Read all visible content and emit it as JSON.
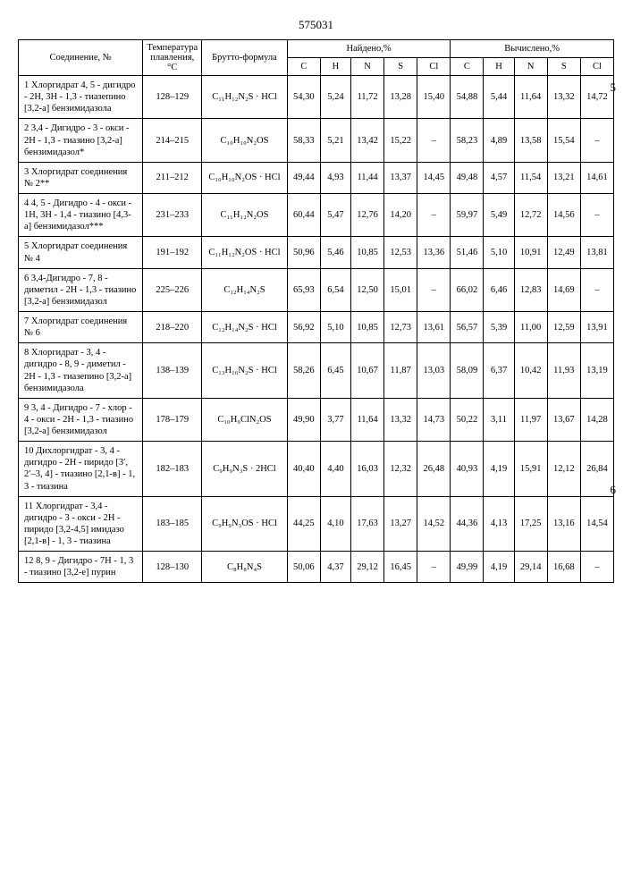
{
  "page_number": "575031",
  "side_labels": {
    "five": "5",
    "six": "6"
  },
  "headers": {
    "compound": "Соединение, №",
    "temp": "Температура плавления, °С",
    "formula": "Брутто-формула",
    "found": "Найдено,%",
    "calc": "Вычислено,%",
    "C": "C",
    "H": "H",
    "N": "N",
    "S": "S",
    "Cl": "Cl"
  },
  "rows": [
    {
      "n": "1",
      "name": "Хлоргидрат 4, 5 - дигидро - 2Н, 3Н - 1,3 - тиазепино [3,2-а] бензимидазола",
      "temp": "128–129",
      "formula": "C₁₁H₁₂N₂S · HCl",
      "f": {
        "C": "54,30",
        "H": "5,24",
        "N": "11,72",
        "S": "13,28",
        "Cl": "15,40"
      },
      "c": {
        "C": "54,88",
        "H": "5,44",
        "N": "11,64",
        "S": "13,32",
        "Cl": "14,72"
      }
    },
    {
      "n": "2",
      "name": "3,4 - Дигидро - 3 - окси - 2Н - 1,3 - тиазино [3,2-а] бензимидазол*",
      "temp": "214–215",
      "formula": "C₁₀H₁₀N₂OS",
      "f": {
        "C": "58,33",
        "H": "5,21",
        "N": "13,42",
        "S": "15,22",
        "Cl": "–"
      },
      "c": {
        "C": "58,23",
        "H": "4,89",
        "N": "13,58",
        "S": "15,54",
        "Cl": "–"
      }
    },
    {
      "n": "3",
      "name": "Хлоргидрат соединения № 2**",
      "temp": "211–212",
      "formula": "C₁₀H₁₀N₂OS · HCl",
      "f": {
        "C": "49,44",
        "H": "4,93",
        "N": "11,44",
        "S": "13,37",
        "Cl": "14,45"
      },
      "c": {
        "C": "49,48",
        "H": "4,57",
        "N": "11,54",
        "S": "13,21",
        "Cl": "14,61"
      }
    },
    {
      "n": "4",
      "name": "4, 5 - Дигидро - 4 - окси - 1Н, 3Н - 1,4 - тиазино [4,3-а] бензимидазол***",
      "temp": "231–233",
      "formula": "C₁₁H₁₂N₂OS",
      "f": {
        "C": "60,44",
        "H": "5,47",
        "N": "12,76",
        "S": "14,20",
        "Cl": "–"
      },
      "c": {
        "C": "59,97",
        "H": "5,49",
        "N": "12,72",
        "S": "14,56",
        "Cl": "–"
      }
    },
    {
      "n": "5",
      "name": "Хлоргидрат соединения № 4",
      "temp": "191–192",
      "formula": "C₁₁H₁₂N₂OS · HCl",
      "f": {
        "C": "50,96",
        "H": "5,46",
        "N": "10,85",
        "S": "12,53",
        "Cl": "13,36"
      },
      "c": {
        "C": "51,46",
        "H": "5,10",
        "N": "10,91",
        "S": "12,49",
        "Cl": "13,81"
      }
    },
    {
      "n": "6",
      "name": "3,4-Дигидро - 7, 8 - диметил - 2Н - 1,3 - тиазино [3,2-а] бензимидазол",
      "temp": "225–226",
      "formula": "C₁₂H₁₄N₂S",
      "f": {
        "C": "65,93",
        "H": "6,54",
        "N": "12,50",
        "S": "15,01",
        "Cl": "–"
      },
      "c": {
        "C": "66,02",
        "H": "6,46",
        "N": "12,83",
        "S": "14,69",
        "Cl": "–"
      }
    },
    {
      "n": "7",
      "name": "Хлоргидрат соединения № 6",
      "temp": "218–220",
      "formula": "C₁₂H₁₄N₂S · HCl",
      "f": {
        "C": "56,92",
        "H": "5,10",
        "N": "10,85",
        "S": "12,73",
        "Cl": "13,61"
      },
      "c": {
        "C": "56,57",
        "H": "5,39",
        "N": "11,00",
        "S": "12,59",
        "Cl": "13,91"
      }
    },
    {
      "n": "8",
      "name": "Хлоргидрат - 3, 4 - дигидро - 8, 9 - диметил - 2Н - 1,3 - тиазепино [3,2-а] бензимидазола",
      "temp": "138–139",
      "formula": "C₁₃H₁₆N₂S · HCl",
      "f": {
        "C": "58,26",
        "H": "6,45",
        "N": "10,67",
        "S": "11,87",
        "Cl": "13,03"
      },
      "c": {
        "C": "58,09",
        "H": "6,37",
        "N": "10,42",
        "S": "11,93",
        "Cl": "13,19"
      }
    },
    {
      "n": "9",
      "name": "3, 4 - Дигидро - 7 - хлор - 4 - окси - 2Н - 1,3 - тиазино [3,2-а] бензимидазол",
      "temp": "178–179",
      "formula": "C₁₀H₉ClN₂OS",
      "f": {
        "C": "49,90",
        "H": "3,77",
        "N": "11,64",
        "S": "13,32",
        "Cl": "14,73"
      },
      "c": {
        "C": "50,22",
        "H": "3,11",
        "N": "11,97",
        "S": "13,67",
        "Cl": "14,28"
      }
    },
    {
      "n": "10",
      "name": "Дихлоргидрат - 3, 4 - дигидро - 2Н - пиридо [3′, 2′–3, 4] - тиазино [2,1-в] - 1, 3 - тиазина",
      "temp": "182–183",
      "formula": "C₉H₉N₃S · 2HCl",
      "f": {
        "C": "40,40",
        "H": "4,40",
        "N": "16,03",
        "S": "12,32",
        "Cl": "26,48"
      },
      "c": {
        "C": "40,93",
        "H": "4,19",
        "N": "15,91",
        "S": "12,12",
        "Cl": "26,84"
      }
    },
    {
      "n": "11",
      "name": "Хлоргидрат - 3,4 - дигидро - 3 - окси - 2Н - пиридо [3,2-4,5] имидазо [2,1-в] - 1, 3 - тиазина",
      "temp": "183–185",
      "formula": "C₉H₉N₃OS · HCl",
      "f": {
        "C": "44,25",
        "H": "4,10",
        "N": "17,63",
        "S": "13,27",
        "Cl": "14,52"
      },
      "c": {
        "C": "44,36",
        "H": "4,13",
        "N": "17,25",
        "S": "13,16",
        "Cl": "14,54"
      }
    },
    {
      "n": "12",
      "name": "8, 9 - Дигидро - 7Н - 1, 3 - тиазино [3,2-е] пурин",
      "temp": "128–130",
      "formula": "C₈H₈N₄S",
      "f": {
        "C": "50,06",
        "H": "4,37",
        "N": "29,12",
        "S": "16,45",
        "Cl": "–"
      },
      "c": {
        "C": "49,99",
        "H": "4,19",
        "N": "29,14",
        "S": "16,68",
        "Cl": "–"
      }
    }
  ]
}
